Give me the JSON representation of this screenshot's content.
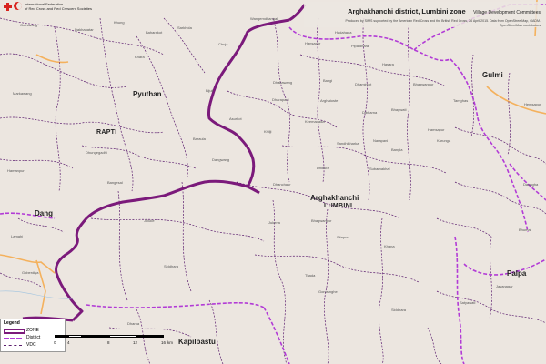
{
  "header": {
    "org_line1": "International Federation",
    "org_line2": "of Red Cross and Red Crescent Societies",
    "title": "Arghakhanchi district, Lumbini zone",
    "subtitle": "Village Development Committees",
    "credits_line1": "Produced by SIMS supported by the American Red Cross and the British Red Cross, 26 April 2015. Data from OpenStreetMap, GADM.",
    "credits_line2": "OpenStreetMap contributors"
  },
  "districts": {
    "pyuthan": "Pyuthan",
    "gulmi": "Gulmi",
    "dang": "Dang",
    "arghakhanchi": "Arghakhanchi",
    "palpa": "Palpa",
    "kapilbastu": "Kapilbastu"
  },
  "zones": {
    "rapti": "RAPTI",
    "lumbini": "LUMBINI"
  },
  "vdcs": {
    "v1": "Gothiwang",
    "v2": "Wangemdhangal",
    "v3": "Dakhanatar",
    "v4": "Khung",
    "v5": "Baharakot",
    "v6": "Sarkhola",
    "v7": "Chuja",
    "v8": "Hansapur",
    "v9": "Hadahada",
    "v10": "Pipaldhara",
    "v11": "Hasara",
    "v12": "Khara",
    "v13": "Bijuli",
    "v14": "Dhakawang",
    "v15": "Bangi",
    "v16": "Dhamirkot",
    "v17": "Bhagwanpur",
    "v18": "Markawang",
    "v19": "Dhungegadhi",
    "v20": "Asurkot",
    "v21": "Dharapani",
    "v22": "Arghatoste",
    "v23": "Bhagwati",
    "v24": "Keemadada",
    "v25": "Dibharna",
    "v26": "Khilji",
    "v27": "Hamsapur",
    "v28": "Sandhikharka",
    "v29": "Narapani",
    "v30": "Bangla",
    "v31": "Karunga",
    "v32": "Hemsapur",
    "v33": "Dangwang",
    "v34": "Baraula",
    "v35": "Dhikura",
    "v36": "Subarnakhal",
    "v37": "Juluke",
    "v38": "Dhanchaur",
    "v39": "Jukena",
    "v40": "Siddhara",
    "v41": "Bhagwanpur",
    "v42": "Sitapur",
    "v43": "Khana",
    "v44": "Thada",
    "v45": "Gorusinghe",
    "v46": "Siddhara",
    "v47": "Satyawati",
    "v48": "Jayanagar",
    "v49": "Bhumai",
    "v50": "Lamahi",
    "v51": "Goberdiya",
    "v52": "Bangesal",
    "v53": "Dharna",
    "v54": "Tamghas",
    "v55": "Daungha",
    "v56": "Hamanpur"
  },
  "legend": {
    "title": "Legend",
    "items": [
      {
        "label": "ZONE",
        "color": "#7b1a7b"
      },
      {
        "label": "District",
        "color": "#b23bd6"
      },
      {
        "label": "VDC",
        "color": "#5b1d6e"
      }
    ]
  },
  "scale": {
    "ticks": [
      "0",
      "4",
      "8",
      "12",
      "16"
    ],
    "unit": "km"
  },
  "colors": {
    "zone": "#7b1a7b",
    "district": "#b23bd6",
    "vdc": "#5b1d6e",
    "road": "#f4b15d",
    "land": "#ece6e0"
  }
}
